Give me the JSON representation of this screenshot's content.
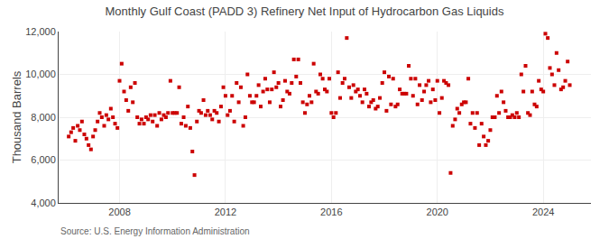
{
  "chart_data": {
    "type": "scatter",
    "title": "Monthly Gulf Coast (PADD 3) Refinery Net Input of Hydrocarbon Gas Liquids",
    "ylabel": "Thousand Barrels",
    "annotations": [
      "Source: U.S. Energy Information Administration"
    ],
    "color": "#cc0000",
    "marker": "square",
    "grid": true,
    "xlim": [
      2005.7,
      2025.8
    ],
    "xticks": [
      2008,
      2012,
      2016,
      2020,
      2024
    ],
    "ylim": [
      4000,
      12000
    ],
    "yticks": [
      {
        "value": 4000,
        "label": "4,000"
      },
      {
        "value": 6000,
        "label": "6,000"
      },
      {
        "value": 8000,
        "label": "8,000"
      },
      {
        "value": 10000,
        "label": "10,000"
      },
      {
        "value": 12000,
        "label": "12,000"
      }
    ],
    "x": [
      2006.08,
      2006.17,
      2006.25,
      2006.33,
      2006.42,
      2006.5,
      2006.58,
      2006.67,
      2006.75,
      2006.83,
      2006.92,
      2007.0,
      2007.08,
      2007.17,
      2007.25,
      2007.33,
      2007.42,
      2007.5,
      2007.58,
      2007.67,
      2007.75,
      2007.83,
      2007.92,
      2008.0,
      2008.08,
      2008.17,
      2008.25,
      2008.33,
      2008.42,
      2008.5,
      2008.58,
      2008.67,
      2008.75,
      2008.83,
      2008.92,
      2009.0,
      2009.08,
      2009.17,
      2009.25,
      2009.33,
      2009.42,
      2009.5,
      2009.58,
      2009.67,
      2009.75,
      2009.83,
      2009.92,
      2010.0,
      2010.08,
      2010.17,
      2010.25,
      2010.33,
      2010.42,
      2010.5,
      2010.58,
      2010.67,
      2010.75,
      2010.83,
      2010.92,
      2011.0,
      2011.08,
      2011.17,
      2011.25,
      2011.33,
      2011.42,
      2011.5,
      2011.58,
      2011.67,
      2011.75,
      2011.83,
      2011.92,
      2012.0,
      2012.08,
      2012.17,
      2012.25,
      2012.33,
      2012.42,
      2012.5,
      2012.58,
      2012.67,
      2012.75,
      2012.83,
      2012.92,
      2013.0,
      2013.08,
      2013.17,
      2013.25,
      2013.33,
      2013.42,
      2013.5,
      2013.58,
      2013.67,
      2013.75,
      2013.83,
      2013.92,
      2014.0,
      2014.08,
      2014.17,
      2014.25,
      2014.33,
      2014.42,
      2014.5,
      2014.58,
      2014.67,
      2014.75,
      2014.83,
      2014.92,
      2015.0,
      2015.08,
      2015.17,
      2015.25,
      2015.33,
      2015.42,
      2015.5,
      2015.58,
      2015.67,
      2015.75,
      2015.83,
      2015.92,
      2016.0,
      2016.08,
      2016.17,
      2016.25,
      2016.33,
      2016.42,
      2016.5,
      2016.58,
      2016.67,
      2016.75,
      2016.83,
      2016.92,
      2017.0,
      2017.08,
      2017.17,
      2017.25,
      2017.33,
      2017.42,
      2017.5,
      2017.58,
      2017.67,
      2017.75,
      2017.83,
      2017.92,
      2018.0,
      2018.08,
      2018.17,
      2018.25,
      2018.33,
      2018.42,
      2018.5,
      2018.58,
      2018.67,
      2018.75,
      2018.83,
      2018.92,
      2019.0,
      2019.08,
      2019.17,
      2019.25,
      2019.33,
      2019.42,
      2019.5,
      2019.58,
      2019.67,
      2019.75,
      2019.83,
      2019.92,
      2020.0,
      2020.08,
      2020.17,
      2020.25,
      2020.33,
      2020.42,
      2020.5,
      2020.58,
      2020.67,
      2020.75,
      2020.83,
      2020.92,
      2021.0,
      2021.08,
      2021.17,
      2021.25,
      2021.33,
      2021.42,
      2021.5,
      2021.58,
      2021.67,
      2021.75,
      2021.83,
      2021.92,
      2022.0,
      2022.08,
      2022.17,
      2022.25,
      2022.33,
      2022.42,
      2022.5,
      2022.58,
      2022.67,
      2022.75,
      2022.83,
      2022.92,
      2023.0,
      2023.08,
      2023.17,
      2023.25,
      2023.33,
      2023.42,
      2023.5,
      2023.58,
      2023.67,
      2023.75,
      2023.83,
      2023.92,
      2024.0,
      2024.08,
      2024.17,
      2024.25,
      2024.33,
      2024.42,
      2024.5,
      2024.58,
      2024.67,
      2024.75,
      2024.83,
      2024.92,
      2025.0
    ],
    "values": [
      7100,
      7300,
      7500,
      6900,
      7600,
      7400,
      7800,
      7200,
      7000,
      6700,
      6500,
      7100,
      7400,
      7800,
      8200,
      8000,
      7600,
      8100,
      7900,
      8400,
      8000,
      7700,
      7500,
      9700,
      10500,
      9200,
      8800,
      8300,
      9400,
      8700,
      9600,
      8000,
      7700,
      7900,
      7700,
      8000,
      7900,
      8100,
      7800,
      8100,
      7600,
      8200,
      7900,
      8100,
      8000,
      8200,
      9700,
      8200,
      8200,
      8200,
      9400,
      7700,
      8000,
      7600,
      8500,
      7500,
      6400,
      5300,
      7800,
      8300,
      8200,
      8800,
      8100,
      8300,
      8100,
      7900,
      8300,
      8200,
      7800,
      8500,
      9400,
      9000,
      8100,
      8300,
      9000,
      7800,
      9600,
      8700,
      9400,
      7600,
      8000,
      10000,
      9000,
      8700,
      8700,
      9000,
      9500,
      8500,
      9200,
      9800,
      9300,
      8700,
      9300,
      10100,
      9400,
      9600,
      8500,
      8800,
      9700,
      9200,
      9100,
      9600,
      10700,
      9900,
      10700,
      9600,
      8700,
      8200,
      8600,
      9000,
      8700,
      10500,
      9200,
      9100,
      10000,
      9800,
      9300,
      9200,
      9800,
      8200,
      8000,
      8200,
      10100,
      8900,
      9600,
      9800,
      11700,
      9400,
      8900,
      9500,
      9200,
      9300,
      9000,
      8700,
      9300,
      9100,
      8500,
      8700,
      8800,
      8400,
      8500,
      8900,
      9600,
      10100,
      8300,
      9900,
      8600,
      9800,
      8500,
      8600,
      9300,
      9100,
      9100,
      9100,
      10400,
      9800,
      9000,
      9800,
      8600,
      9500,
      8800,
      9200,
      9500,
      9700,
      8700,
      9300,
      8800,
      9700,
      8200,
      8900,
      9700,
      9600,
      9500,
      5400,
      7600,
      7900,
      8400,
      8200,
      8600,
      8700,
      8700,
      9800,
      7700,
      8200,
      7500,
      8200,
      6700,
      7700,
      7100,
      6700,
      6900,
      7400,
      8000,
      8000,
      9000,
      8200,
      9200,
      8700,
      8300,
      8000,
      8000,
      8100,
      8000,
      8200,
      8000,
      10000,
      9200,
      10400,
      8200,
      8100,
      9200,
      8600,
      8500,
      9700,
      9300,
      9200,
      11900,
      11700,
      10300,
      10000,
      9500,
      11000,
      10200,
      9300,
      9400,
      9700,
      10600,
      9500
    ]
  }
}
